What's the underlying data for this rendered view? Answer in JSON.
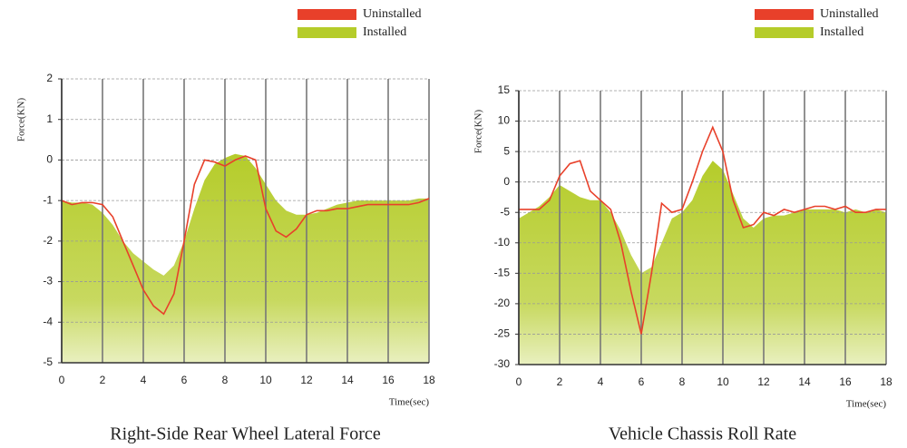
{
  "chart_data": [
    {
      "type": "line",
      "title": "Right-Side Rear Wheel Lateral Force",
      "y_label": "Force(KN)",
      "x_label": "Time(sec)",
      "x": [
        0,
        0.5,
        1,
        1.5,
        2,
        2.5,
        3,
        3.5,
        4,
        4.5,
        5,
        5.5,
        6,
        6.5,
        7,
        7.5,
        8,
        8.5,
        9,
        9.5,
        10,
        10.5,
        11,
        11.5,
        12,
        12.5,
        13,
        13.5,
        14,
        14.5,
        15,
        15.5,
        16,
        16.5,
        17,
        17.5,
        18
      ],
      "series": [
        {
          "name": "Installed",
          "color": "#b5cc2a",
          "fill": true,
          "values": [
            -1.0,
            -1.05,
            -1.05,
            -1.1,
            -1.3,
            -1.6,
            -2.0,
            -2.3,
            -2.5,
            -2.7,
            -2.85,
            -2.6,
            -2.0,
            -1.2,
            -0.5,
            -0.1,
            0.05,
            0.15,
            0.1,
            -0.2,
            -0.6,
            -1.0,
            -1.25,
            -1.35,
            -1.35,
            -1.3,
            -1.2,
            -1.1,
            -1.05,
            -1.0,
            -1.0,
            -1.0,
            -1.0,
            -1.0,
            -1.0,
            -0.95,
            -0.95
          ]
        },
        {
          "name": "Uninstalled",
          "color": "#e8402a",
          "fill": false,
          "values": [
            -1.0,
            -1.1,
            -1.05,
            -1.05,
            -1.1,
            -1.4,
            -2.0,
            -2.6,
            -3.2,
            -3.6,
            -3.8,
            -3.3,
            -2.0,
            -0.6,
            0.0,
            -0.05,
            -0.15,
            0.0,
            0.1,
            0.0,
            -1.2,
            -1.75,
            -1.9,
            -1.7,
            -1.35,
            -1.25,
            -1.25,
            -1.2,
            -1.2,
            -1.15,
            -1.1,
            -1.1,
            -1.1,
            -1.1,
            -1.1,
            -1.05,
            -0.95
          ]
        }
      ],
      "xlim": [
        0,
        18
      ],
      "xticks": [
        0,
        2,
        4,
        6,
        8,
        10,
        12,
        14,
        16,
        18
      ],
      "ylim": [
        -5,
        2
      ],
      "yticks": [
        -5,
        -4,
        -3,
        -2,
        -1,
        0,
        1,
        2
      ],
      "grid": true
    },
    {
      "type": "line",
      "title": "Vehicle Chassis Roll Rate",
      "y_label": "Force(KN)",
      "x_label": "Time(sec)",
      "x": [
        0,
        0.5,
        1,
        1.5,
        2,
        2.5,
        3,
        3.5,
        4,
        4.5,
        5,
        5.5,
        6,
        6.5,
        7,
        7.5,
        8,
        8.5,
        9,
        9.5,
        10,
        10.5,
        11,
        11.5,
        12,
        12.5,
        13,
        13.5,
        14,
        14.5,
        15,
        15.5,
        16,
        16.5,
        17,
        17.5,
        18
      ],
      "series": [
        {
          "name": "Installed",
          "color": "#b5cc2a",
          "fill": true,
          "values": [
            -6,
            -5,
            -4,
            -2.5,
            -0.5,
            -1.5,
            -2.5,
            -3,
            -3,
            -5,
            -8,
            -12,
            -15,
            -14,
            -10,
            -6,
            -5,
            -3,
            1,
            3.5,
            2,
            -2,
            -6,
            -7.5,
            -6,
            -5.5,
            -5.5,
            -5,
            -4.5,
            -4.5,
            -4.5,
            -4.5,
            -5,
            -4.5,
            -5,
            -4.5,
            -5
          ]
        },
        {
          "name": "Uninstalled",
          "color": "#e8402a",
          "fill": false,
          "values": [
            -4.5,
            -4.5,
            -4.5,
            -3,
            1,
            3,
            3.5,
            -1.5,
            -3,
            -4.5,
            -10,
            -18,
            -25,
            -15,
            -3.5,
            -5,
            -4.5,
            0,
            5,
            9,
            5,
            -3,
            -7.5,
            -7,
            -5,
            -5.5,
            -4.5,
            -5,
            -4.5,
            -4,
            -4,
            -4.5,
            -4,
            -5,
            -5,
            -4.5,
            -4.5
          ]
        }
      ],
      "xlim": [
        0,
        18
      ],
      "xticks": [
        0,
        2,
        4,
        6,
        8,
        10,
        12,
        14,
        16,
        18
      ],
      "ylim": [
        -30,
        15
      ],
      "yticks": [
        -30,
        -25,
        -20,
        -15,
        -10,
        -5,
        0,
        5,
        10,
        15
      ],
      "grid": true
    }
  ]
}
